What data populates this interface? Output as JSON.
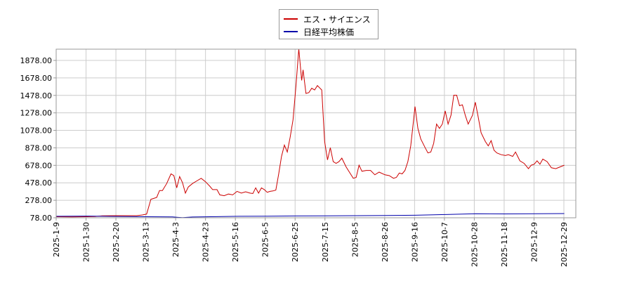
{
  "chart_data": {
    "type": "line",
    "title": "",
    "xlabel": "",
    "ylabel": "",
    "x_tick_labels": [
      "2025-1-9",
      "2025-1-30",
      "2025-2-20",
      "2025-3-13",
      "2025-4-3",
      "2025-4-23",
      "2025-5-16",
      "2025-6-5",
      "2025-6-25",
      "2025-7-15",
      "2025-8-5",
      "2025-8-26",
      "2025-9-16",
      "2025-10-7",
      "2025-10-28",
      "2025-11-18",
      "2025-12-9",
      "2025-12-29"
    ],
    "y_tick_labels": [
      "78.00",
      "278.00",
      "478.00",
      "678.00",
      "878.00",
      "1078.00",
      "1278.00",
      "1478.00",
      "1678.00",
      "1878.00"
    ],
    "ylim": [
      78,
      1878
    ],
    "xlim": [
      "2025-01-09",
      "2026-01-06"
    ],
    "grid": true,
    "legend_position": "top-center",
    "series": [
      {
        "name": "エス・サイエンス",
        "color": "#cc0000",
        "points": [
          [
            "2025-01-09",
            90
          ],
          [
            "2025-01-20",
            88
          ],
          [
            "2025-01-30",
            90
          ],
          [
            "2025-02-05",
            92
          ],
          [
            "2025-02-10",
            100
          ],
          [
            "2025-02-20",
            102
          ],
          [
            "2025-02-28",
            102
          ],
          [
            "2025-03-06",
            102
          ],
          [
            "2025-03-10",
            110
          ],
          [
            "2025-03-13",
            120
          ],
          [
            "2025-03-16",
            290
          ],
          [
            "2025-03-18",
            300
          ],
          [
            "2025-03-20",
            310
          ],
          [
            "2025-03-22",
            390
          ],
          [
            "2025-03-24",
            390
          ],
          [
            "2025-03-27",
            470
          ],
          [
            "2025-03-30",
            580
          ],
          [
            "2025-04-01",
            560
          ],
          [
            "2025-04-03",
            420
          ],
          [
            "2025-04-05",
            550
          ],
          [
            "2025-04-07",
            480
          ],
          [
            "2025-04-09",
            360
          ],
          [
            "2025-04-11",
            430
          ],
          [
            "2025-04-14",
            470
          ],
          [
            "2025-04-17",
            500
          ],
          [
            "2025-04-20",
            530
          ],
          [
            "2025-04-23",
            490
          ],
          [
            "2025-04-26",
            440
          ],
          [
            "2025-04-28",
            400
          ],
          [
            "2025-05-01",
            400
          ],
          [
            "2025-05-03",
            340
          ],
          [
            "2025-05-06",
            330
          ],
          [
            "2025-05-09",
            350
          ],
          [
            "2025-05-12",
            340
          ],
          [
            "2025-05-15",
            380
          ],
          [
            "2025-05-18",
            360
          ],
          [
            "2025-05-21",
            375
          ],
          [
            "2025-05-24",
            360
          ],
          [
            "2025-05-26",
            355
          ],
          [
            "2025-05-28",
            420
          ],
          [
            "2025-05-30",
            360
          ],
          [
            "2025-06-01",
            420
          ],
          [
            "2025-06-03",
            400
          ],
          [
            "2025-06-05",
            370
          ],
          [
            "2025-06-07",
            380
          ],
          [
            "2025-06-09",
            385
          ],
          [
            "2025-06-11",
            395
          ],
          [
            "2025-06-13",
            580
          ],
          [
            "2025-06-15",
            780
          ],
          [
            "2025-06-17",
            910
          ],
          [
            "2025-06-19",
            830
          ],
          [
            "2025-06-21",
            1000
          ],
          [
            "2025-06-23",
            1200
          ],
          [
            "2025-06-25",
            1580
          ],
          [
            "2025-06-27",
            2010
          ],
          [
            "2025-06-29",
            1650
          ],
          [
            "2025-06-30",
            1770
          ],
          [
            "2025-07-02",
            1500
          ],
          [
            "2025-07-04",
            1510
          ],
          [
            "2025-07-06",
            1560
          ],
          [
            "2025-07-08",
            1540
          ],
          [
            "2025-07-10",
            1590
          ],
          [
            "2025-07-13",
            1540
          ],
          [
            "2025-07-15",
            950
          ],
          [
            "2025-07-17",
            740
          ],
          [
            "2025-07-19",
            880
          ],
          [
            "2025-07-21",
            720
          ],
          [
            "2025-07-23",
            700
          ],
          [
            "2025-07-25",
            720
          ],
          [
            "2025-07-27",
            760
          ],
          [
            "2025-07-30",
            660
          ],
          [
            "2025-08-02",
            580
          ],
          [
            "2025-08-04",
            530
          ],
          [
            "2025-08-06",
            540
          ],
          [
            "2025-08-08",
            680
          ],
          [
            "2025-08-10",
            610
          ],
          [
            "2025-08-13",
            620
          ],
          [
            "2025-08-16",
            620
          ],
          [
            "2025-08-19",
            570
          ],
          [
            "2025-08-22",
            600
          ],
          [
            "2025-08-26",
            570
          ],
          [
            "2025-08-29",
            560
          ],
          [
            "2025-09-01",
            530
          ],
          [
            "2025-09-03",
            540
          ],
          [
            "2025-09-05",
            590
          ],
          [
            "2025-09-07",
            580
          ],
          [
            "2025-09-09",
            620
          ],
          [
            "2025-09-11",
            720
          ],
          [
            "2025-09-13",
            900
          ],
          [
            "2025-09-15",
            1200
          ],
          [
            "2025-09-16",
            1350
          ],
          [
            "2025-09-18",
            1100
          ],
          [
            "2025-09-20",
            980
          ],
          [
            "2025-09-23",
            880
          ],
          [
            "2025-09-25",
            820
          ],
          [
            "2025-09-27",
            830
          ],
          [
            "2025-09-29",
            930
          ],
          [
            "2025-10-01",
            1150
          ],
          [
            "2025-10-03",
            1100
          ],
          [
            "2025-10-05",
            1150
          ],
          [
            "2025-10-07",
            1300
          ],
          [
            "2025-10-09",
            1150
          ],
          [
            "2025-10-11",
            1250
          ],
          [
            "2025-10-13",
            1480
          ],
          [
            "2025-10-15",
            1480
          ],
          [
            "2025-10-17",
            1360
          ],
          [
            "2025-10-19",
            1370
          ],
          [
            "2025-10-21",
            1250
          ],
          [
            "2025-10-23",
            1150
          ],
          [
            "2025-10-26",
            1250
          ],
          [
            "2025-10-28",
            1400
          ],
          [
            "2025-10-30",
            1230
          ],
          [
            "2025-11-01",
            1050
          ],
          [
            "2025-11-04",
            950
          ],
          [
            "2025-11-06",
            900
          ],
          [
            "2025-11-08",
            960
          ],
          [
            "2025-11-10",
            850
          ],
          [
            "2025-11-12",
            820
          ],
          [
            "2025-11-15",
            800
          ],
          [
            "2025-11-18",
            790
          ],
          [
            "2025-11-20",
            800
          ],
          [
            "2025-11-23",
            780
          ],
          [
            "2025-11-25",
            830
          ],
          [
            "2025-11-28",
            730
          ],
          [
            "2025-12-01",
            700
          ],
          [
            "2025-12-04",
            640
          ],
          [
            "2025-12-06",
            680
          ],
          [
            "2025-12-08",
            690
          ],
          [
            "2025-12-10",
            730
          ],
          [
            "2025-12-12",
            690
          ],
          [
            "2025-12-14",
            750
          ],
          [
            "2025-12-17",
            720
          ],
          [
            "2025-12-20",
            650
          ],
          [
            "2025-12-23",
            640
          ],
          [
            "2025-12-26",
            660
          ],
          [
            "2025-12-29",
            680
          ]
        ]
      },
      {
        "name": "日経平均株価",
        "color": "#0000aa",
        "points": [
          [
            "2025-01-09",
            95
          ],
          [
            "2025-01-30",
            97
          ],
          [
            "2025-02-20",
            93
          ],
          [
            "2025-03-13",
            90
          ],
          [
            "2025-03-31",
            88
          ],
          [
            "2025-04-07",
            80
          ],
          [
            "2025-04-14",
            87
          ],
          [
            "2025-04-23",
            89
          ],
          [
            "2025-05-16",
            95
          ],
          [
            "2025-06-05",
            96
          ],
          [
            "2025-06-25",
            99
          ],
          [
            "2025-07-15",
            100
          ],
          [
            "2025-08-05",
            102
          ],
          [
            "2025-08-26",
            104
          ],
          [
            "2025-09-16",
            107
          ],
          [
            "2025-10-07",
            115
          ],
          [
            "2025-10-28",
            125
          ],
          [
            "2025-11-18",
            122
          ],
          [
            "2025-12-09",
            124
          ],
          [
            "2025-12-29",
            126
          ]
        ]
      }
    ]
  }
}
